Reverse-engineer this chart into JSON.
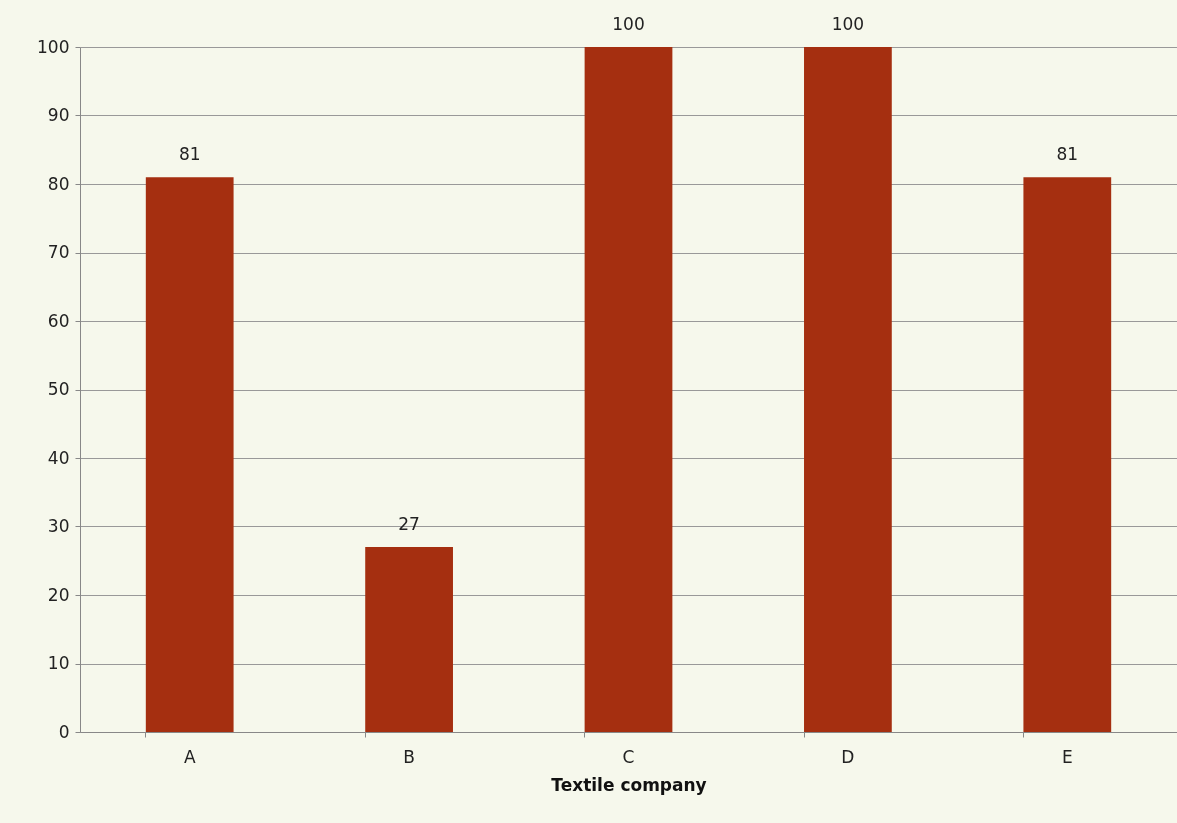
{
  "chart_data": {
    "type": "bar",
    "xlabel": "Textile company",
    "categories": [
      "A",
      "B",
      "C",
      "D",
      "E"
    ],
    "values": [
      81,
      27,
      100,
      100,
      81
    ],
    "color": "#a52f10",
    "ylim": [
      0,
      100
    ],
    "yticks": [
      0,
      10,
      20,
      30,
      40,
      50,
      60,
      70,
      80,
      90,
      100
    ],
    "grid": "y",
    "data_labels": true
  }
}
